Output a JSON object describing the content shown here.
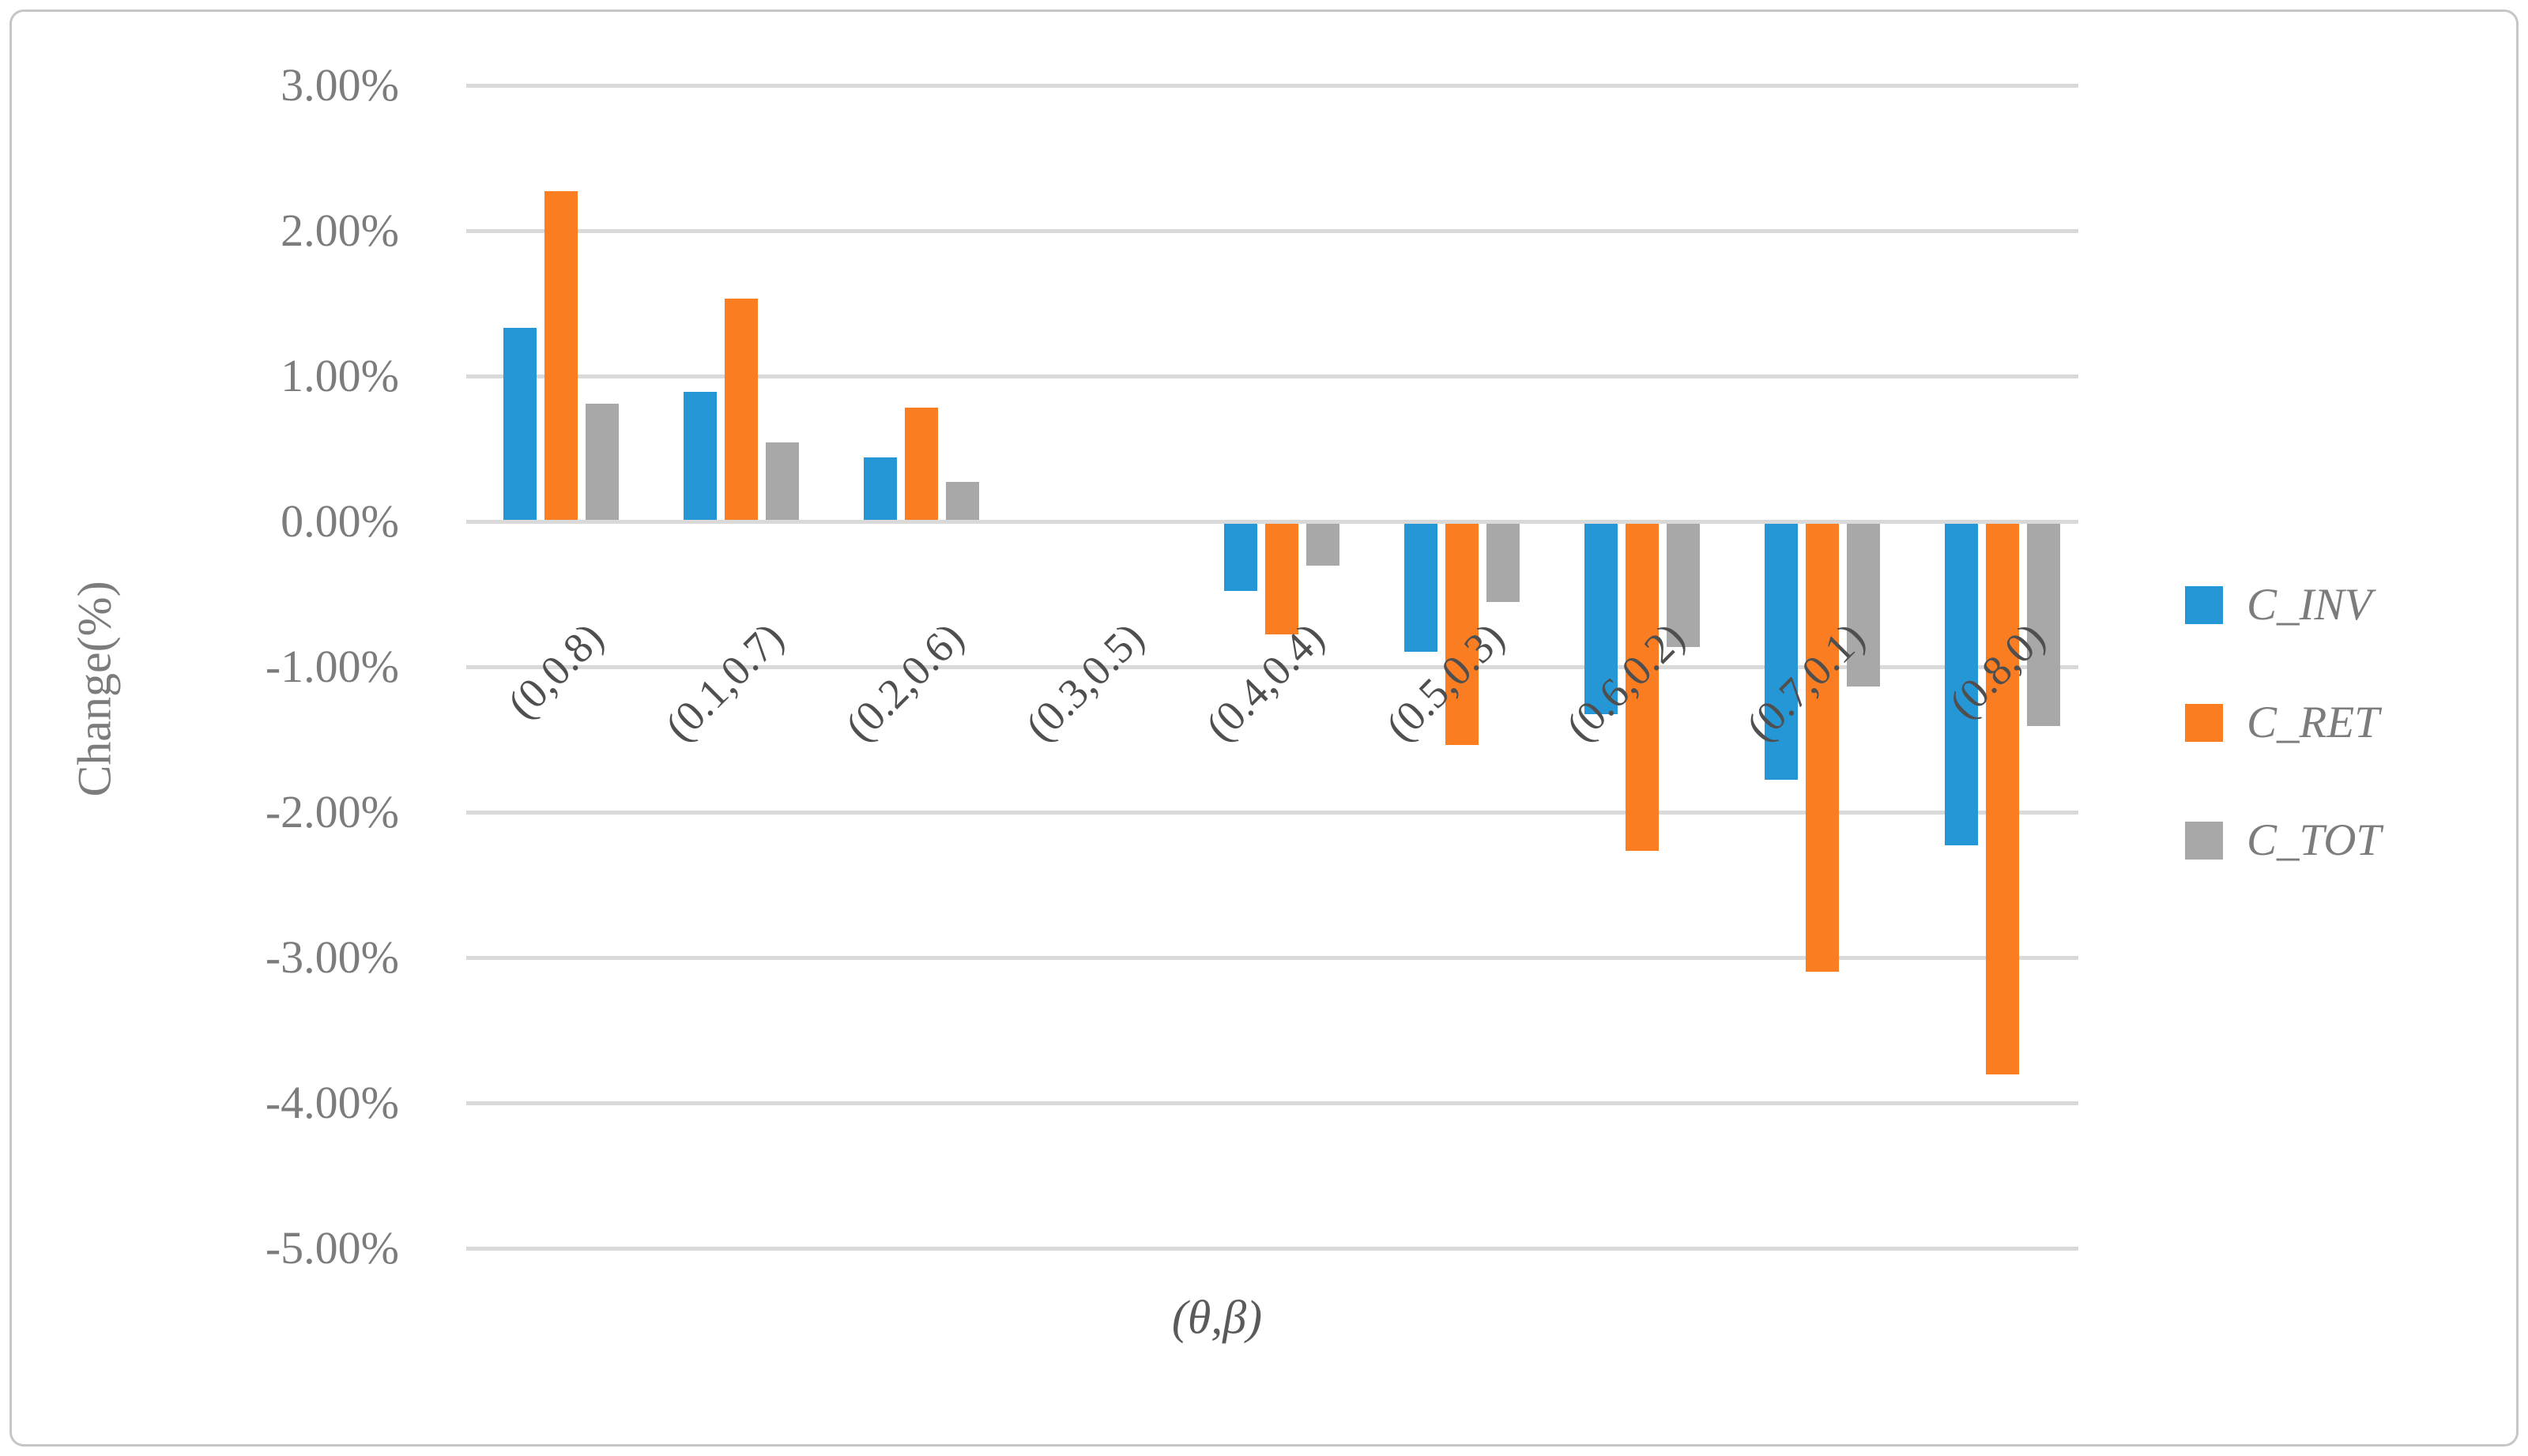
{
  "figure": {
    "background": "#ffffff",
    "border_color": "#c6c6c6"
  },
  "y_axis": {
    "title": "Change(%)",
    "ticks": [
      {
        "label": "3.00%",
        "value": 3
      },
      {
        "label": "2.00%",
        "value": 2
      },
      {
        "label": "1.00%",
        "value": 1
      },
      {
        "label": "0.00%",
        "value": 0
      },
      {
        "label": "-1.00%",
        "value": -1
      },
      {
        "label": "-2.00%",
        "value": -2
      },
      {
        "label": "-3.00%",
        "value": -3
      },
      {
        "label": "-4.00%",
        "value": -4
      },
      {
        "label": "-5.00%",
        "value": -5
      }
    ]
  },
  "x_axis": {
    "title": "(θ,β)"
  },
  "legend": {
    "position": "right",
    "entries": [
      {
        "label": "C_INV",
        "color": "#2697d6"
      },
      {
        "label": "C_RET",
        "color": "#fa7d22"
      },
      {
        "label": "C_TOT",
        "color": "#a8a8a8"
      }
    ]
  },
  "chart_data": {
    "type": "bar",
    "title": "",
    "xlabel": "(θ,β)",
    "ylabel": "Change(%)",
    "ylim": [
      -5,
      3
    ],
    "ytick_step": 1,
    "grid": true,
    "legend_position": "right",
    "categories": [
      "(0,0.8)",
      "(0.1,0.7)",
      "(0.2,0.6)",
      "(0.3,0.5)",
      "(0.4,0.4)",
      "(0.5,0.3)",
      "(0.6,0.2)",
      "(0.7,0.1)",
      "(0.8,0)"
    ],
    "series": [
      {
        "name": "C_INV",
        "color": "#2697d6",
        "values": [
          1.32,
          0.88,
          0.43,
          0,
          -0.46,
          -0.88,
          -1.31,
          -1.76,
          -2.21
        ]
      },
      {
        "name": "C_RET",
        "color": "#fa7d22",
        "values": [
          2.26,
          1.52,
          0.77,
          0,
          -0.76,
          -1.52,
          -2.25,
          -3.08,
          -3.79
        ]
      },
      {
        "name": "C_TOT",
        "color": "#a8a8a8",
        "values": [
          0.8,
          0.53,
          0.26,
          0,
          -0.29,
          -0.54,
          -0.85,
          -1.12,
          -1.39
        ]
      }
    ]
  }
}
